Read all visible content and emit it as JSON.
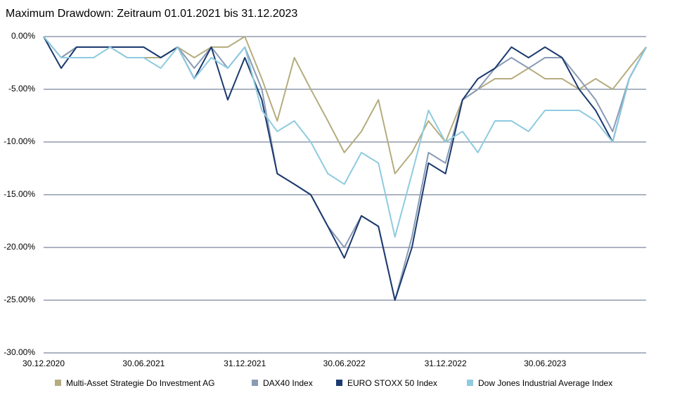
{
  "chart_data": {
    "type": "line",
    "title": "Maximum Drawdown: Zeitraum 01.01.2021 bis 31.12.2023",
    "x": [
      "30.12.2020",
      "31.01.2021",
      "28.02.2021",
      "31.03.2021",
      "30.04.2021",
      "31.05.2021",
      "30.06.2021",
      "31.07.2021",
      "31.08.2021",
      "30.09.2021",
      "31.10.2021",
      "30.11.2021",
      "31.12.2021",
      "31.01.2022",
      "28.02.2022",
      "31.03.2022",
      "30.04.2022",
      "31.05.2022",
      "30.06.2022",
      "31.07.2022",
      "31.08.2022",
      "30.09.2022",
      "31.10.2022",
      "30.11.2022",
      "31.12.2022",
      "31.01.2023",
      "28.02.2023",
      "31.03.2023",
      "30.04.2023",
      "31.05.2023",
      "30.06.2023",
      "31.07.2023",
      "31.08.2023",
      "30.09.2023",
      "31.10.2023",
      "30.11.2023",
      "31.12.2023"
    ],
    "series": [
      {
        "name": "Multi-Asset Strategie Do Investment AG",
        "color": "#b5ad7f",
        "values": [
          0,
          -2,
          -1,
          -1,
          -1,
          -2,
          -2,
          -2,
          -1,
          -2,
          -1,
          -1,
          0,
          -4,
          -8,
          -2,
          -5,
          -8,
          -11,
          -9,
          -6,
          -13,
          -11,
          -8,
          -10,
          -6,
          -5,
          -4,
          -4,
          -3,
          -4,
          -4,
          -5,
          -4,
          -5,
          -3,
          -1
        ]
      },
      {
        "name": "DAX40 Index",
        "color": "#8a9bb5",
        "values": [
          0,
          -2,
          -1,
          -1,
          -1,
          -1,
          -1,
          -2,
          -1,
          -3,
          -1,
          -3,
          -1,
          -5,
          -13,
          -14,
          -15,
          -18,
          -20,
          -17,
          -18,
          -25,
          -19,
          -11,
          -12,
          -6,
          -5,
          -3,
          -2,
          -3,
          -2,
          -2,
          -4,
          -6,
          -9,
          -4,
          -1
        ]
      },
      {
        "name": "EURO STOXX 50 Index",
        "color": "#1c3a6e",
        "values": [
          0,
          -3,
          -1,
          -1,
          -1,
          -1,
          -1,
          -2,
          -1,
          -4,
          -1,
          -6,
          -2,
          -6,
          -13,
          -14,
          -15,
          -18,
          -21,
          -17,
          -18,
          -25,
          -20,
          -12,
          -13,
          -6,
          -4,
          -3,
          -1,
          -2,
          -1,
          -2,
          -5,
          -7,
          -10,
          -4,
          -1
        ]
      },
      {
        "name": "Dow Jones Industrial Average Index",
        "color": "#8fcbe0",
        "values": [
          0,
          -2,
          -2,
          -2,
          -1,
          -2,
          -2,
          -3,
          -1,
          -4,
          -2,
          -3,
          -1,
          -7,
          -9,
          -8,
          -10,
          -13,
          -14,
          -11,
          -12,
          -19,
          -13,
          -7,
          -10,
          -9,
          -11,
          -8,
          -8,
          -9,
          -7,
          -7,
          -7,
          -8,
          -10,
          -4,
          -1
        ]
      }
    ],
    "xlim": [
      "30.12.2020",
      "31.12.2023"
    ],
    "xticks": [
      "30.12.2020",
      "30.06.2021",
      "31.12.2021",
      "30.06.2022",
      "31.12.2022",
      "30.06.2023"
    ],
    "ylim": [
      -30,
      0
    ],
    "yticks": [
      {
        "value": 0,
        "label": "0.00%"
      },
      {
        "value": -5,
        "label": "-5.00%"
      },
      {
        "value": -10,
        "label": "-10.00%"
      },
      {
        "value": -15,
        "label": "-15.00%"
      },
      {
        "value": -20,
        "label": "-20.00%"
      },
      {
        "value": -25,
        "label": "-25.00%"
      },
      {
        "value": -30,
        "label": "-30.00%"
      }
    ],
    "grid": true
  }
}
